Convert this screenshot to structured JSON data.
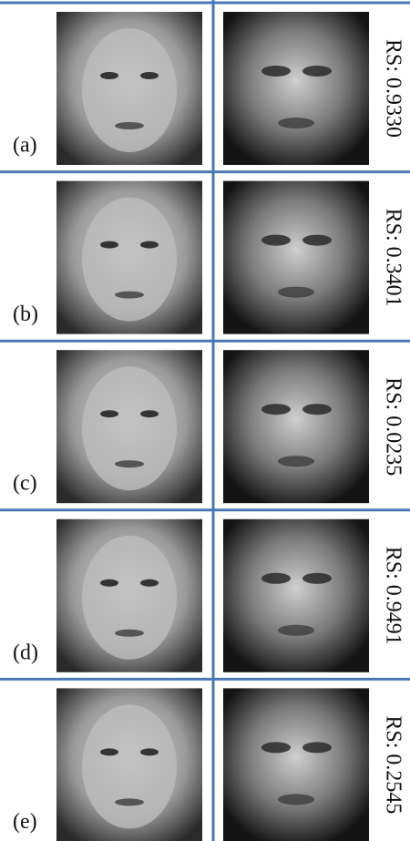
{
  "panels": [
    {
      "label": "(a)",
      "score": "RS: 0.9330"
    },
    {
      "label": "(b)",
      "score": "RS: 0.3401"
    },
    {
      "label": "(c)",
      "score": "RS: 0.0235"
    },
    {
      "label": "(d)",
      "score": "RS: 0.9491"
    },
    {
      "label": "(e)",
      "score": "RS: 0.2545"
    }
  ]
}
